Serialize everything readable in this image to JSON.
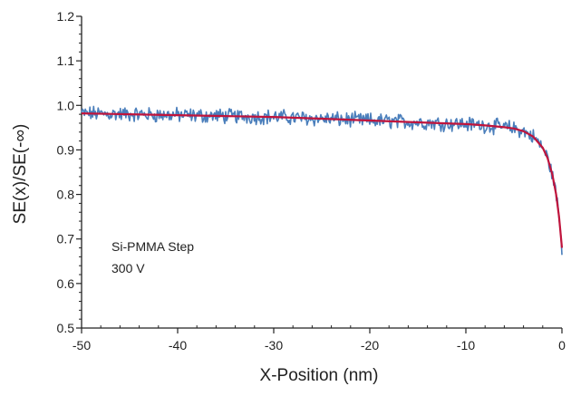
{
  "chart_data": {
    "type": "line",
    "xlabel": "X-Position (nm)",
    "ylabel": "SE(x)/SE(-∞)",
    "xlim": [
      -50,
      0
    ],
    "ylim": [
      0.5,
      1.2
    ],
    "x_ticks": [
      -50,
      -40,
      -30,
      -20,
      -10,
      0
    ],
    "y_ticks": [
      0.5,
      0.6,
      0.7,
      0.8,
      0.9,
      1.0,
      1.1,
      1.2
    ],
    "x_tick_labels": [
      "-50",
      "-40",
      "-30",
      "-20",
      "-10",
      "0"
    ],
    "y_tick_labels": [
      "0.5",
      "0.6",
      "0.7",
      "0.8",
      "0.9",
      "1.0",
      "1.1",
      "1.2"
    ],
    "grid": false,
    "annotations": [
      "Si-PMMA Step",
      "300 V"
    ],
    "colors": {
      "measured": "#4a7ebb",
      "fit": "#c0143c",
      "axis": "#222222"
    },
    "series": [
      {
        "style": "noisy",
        "color": "#4a7ebb",
        "x": [
          -50,
          -45,
          -40,
          -35,
          -30,
          -25,
          -20,
          -15,
          -10,
          -8,
          -6,
          -5,
          -4,
          -3,
          -2,
          -1.5,
          -1,
          -0.6,
          -0.3,
          0
        ],
        "y": [
          0.982,
          0.98,
          0.978,
          0.976,
          0.974,
          0.97,
          0.966,
          0.962,
          0.958,
          0.955,
          0.951,
          0.948,
          0.942,
          0.93,
          0.905,
          0.882,
          0.845,
          0.8,
          0.75,
          0.68
        ]
      },
      {
        "style": "smooth",
        "color": "#c0143c",
        "x": [
          -50,
          -45,
          -40,
          -35,
          -30,
          -25,
          -20,
          -15,
          -10,
          -8,
          -6,
          -5,
          -4,
          -3,
          -2,
          -1.5,
          -1,
          -0.6,
          -0.3,
          0
        ],
        "y": [
          0.982,
          0.98,
          0.978,
          0.976,
          0.974,
          0.97,
          0.966,
          0.962,
          0.958,
          0.955,
          0.951,
          0.948,
          0.942,
          0.93,
          0.905,
          0.882,
          0.845,
          0.8,
          0.75,
          0.68
        ]
      }
    ]
  }
}
